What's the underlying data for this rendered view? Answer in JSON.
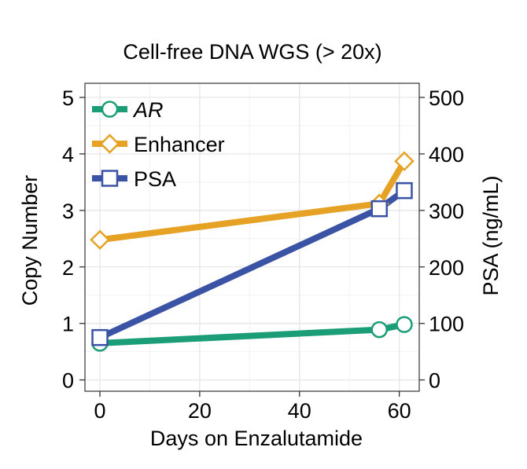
{
  "chart_data": {
    "type": "line",
    "title": "Cell-free DNA WGS (> 20x)",
    "xlabel": "Days on Enzalutamide",
    "ylabel": "Copy Number",
    "y2label": "PSA (ng/mL)",
    "xlim": [
      -3,
      64
    ],
    "ylim": [
      -0.2,
      5.25
    ],
    "y2lim": [
      -20,
      525
    ],
    "xticks": [
      "0",
      "20",
      "40",
      "60"
    ],
    "yticks": [
      "0",
      "1",
      "2",
      "3",
      "4",
      "5"
    ],
    "y2ticks": [
      "0",
      "100",
      "200",
      "300",
      "400",
      "500"
    ],
    "grid": true,
    "legend_position": "top-left",
    "series": [
      {
        "name": "AR",
        "axis": "left",
        "marker": "circle",
        "color": "#1b9e77",
        "italic": true,
        "points": [
          {
            "x": 0,
            "y": 0.65
          },
          {
            "x": 56,
            "y": 0.89
          },
          {
            "x": 61,
            "y": 0.98
          }
        ]
      },
      {
        "name": "Enhancer",
        "axis": "left",
        "marker": "diamond",
        "color": "#e6a224",
        "italic": false,
        "points": [
          {
            "x": 0,
            "y": 2.48
          },
          {
            "x": 56,
            "y": 3.12
          },
          {
            "x": 61,
            "y": 3.87
          }
        ]
      },
      {
        "name": "PSA",
        "axis": "right",
        "marker": "square",
        "color": "#3a53a4",
        "italic": false,
        "points": [
          {
            "x": 0,
            "y": 75
          },
          {
            "x": 56,
            "y": 303
          },
          {
            "x": 61,
            "y": 335
          }
        ]
      }
    ]
  }
}
